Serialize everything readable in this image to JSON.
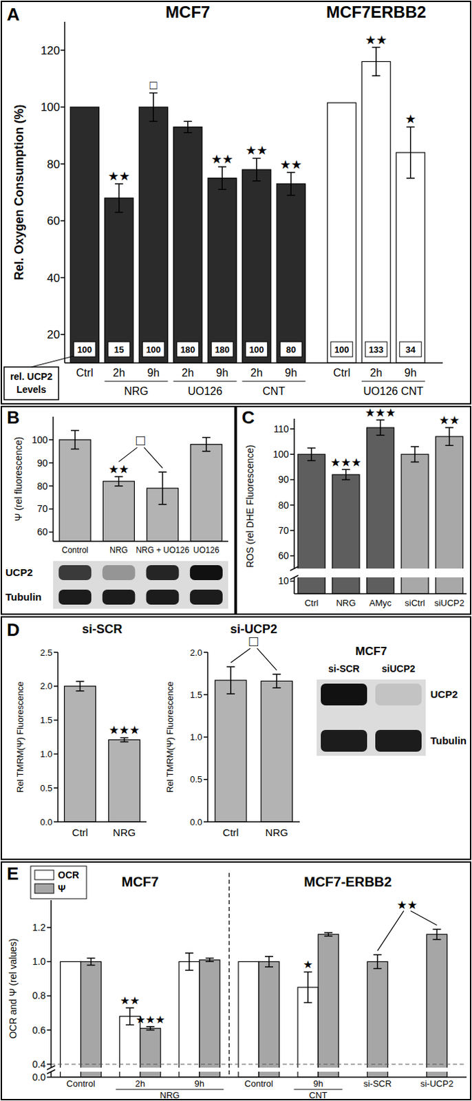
{
  "chart_data": [
    {
      "panel_label": "A",
      "type": "bar",
      "y_label": "Rel. Oxygen Consumption (%)",
      "ylim": [
        10,
        130
      ],
      "yticks": [
        20,
        40,
        60,
        80,
        100,
        120
      ],
      "ucp2_label": [
        "rel. UCP2",
        "Levels"
      ],
      "series": [
        {
          "name": "MCF7",
          "color": "#2b2b2b",
          "categories": [
            "Ctrl",
            "2h",
            "9h",
            "2h",
            "9h",
            "2h",
            "9h"
          ],
          "group_labels": [
            null,
            "NRG",
            "NRG",
            "UO126",
            "UO126",
            "CNT",
            "CNT"
          ],
          "values": [
            100,
            68,
            100,
            93,
            75,
            78,
            73
          ],
          "errors": [
            null,
            5,
            5,
            2,
            4,
            4,
            4
          ],
          "significance": [
            null,
            "★★",
            "□",
            null,
            "★★",
            "★★",
            "★★"
          ],
          "rel_ucp2": [
            100,
            15,
            100,
            180,
            180,
            100,
            80
          ]
        },
        {
          "name": "MCF7ERBB2",
          "color": "#ffffff",
          "categories": [
            "Ctrl",
            "2h",
            "9h"
          ],
          "group_labels": [
            null,
            "UO126 CNT",
            "UO126 CNT"
          ],
          "values": [
            101.5,
            116,
            84
          ],
          "errors": [
            null,
            5,
            9
          ],
          "significance": [
            null,
            "★★",
            "★"
          ],
          "rel_ucp2": [
            100,
            133,
            34
          ]
        }
      ]
    },
    {
      "panel_label": "B",
      "type": "bar",
      "y_label": "Ψ (rel fluorescence)",
      "ylim": [
        56,
        110
      ],
      "yticks": [
        60,
        70,
        80,
        90,
        100
      ],
      "color": "#b3b3b3",
      "categories": [
        "Control",
        "NRG",
        "NRG + UO126",
        "UO126"
      ],
      "values": [
        100,
        82,
        79,
        98
      ],
      "errors": [
        4,
        2,
        7,
        3
      ],
      "significance": [
        null,
        "★★",
        null,
        null
      ],
      "bracket": {
        "label": "□",
        "categories": [
          "NRG",
          "NRG + UO126"
        ]
      },
      "blot": {
        "rows": [
          {
            "label": "UCP2",
            "intensity": [
              0.8,
              0.35,
              0.9,
              1.0
            ]
          },
          {
            "label": "Tubulin",
            "intensity": [
              0.95,
              0.95,
              0.95,
              0.95
            ]
          }
        ]
      }
    },
    {
      "panel_label": "C",
      "type": "bar",
      "y_label": "ROS (rel DHE Fluorescence)",
      "ylim": [
        55,
        114
      ],
      "yticks": [
        60,
        70,
        80,
        90,
        100,
        110
      ],
      "axis_break": {
        "ylim": [
          0,
          13
        ],
        "yticks": [
          10
        ]
      },
      "colors": [
        "#5e5e5e",
        "#5e5e5e",
        "#5e5e5e",
        "#a8a8a8",
        "#a8a8a8"
      ],
      "categories": [
        "Ctrl",
        "NRG",
        "AMyc",
        "siCtrl",
        "siUCP2"
      ],
      "values": [
        100,
        92,
        110.5,
        100,
        107
      ],
      "errors": [
        2.5,
        2,
        3,
        3,
        3.5
      ],
      "significance": [
        null,
        "★★★",
        "★★★",
        null,
        "★★"
      ]
    },
    {
      "panel_label": "D",
      "type": "bar",
      "title": "si-SCR",
      "y_label": "Rel TMRM(Ψ) Fluorescence",
      "ylim": [
        0,
        2.5
      ],
      "yticks": [
        {
          "value": 0,
          "label": "0.0"
        },
        0.5,
        {
          "value": 1,
          "label": "1.0"
        },
        1.5,
        {
          "value": 2,
          "label": "2.0"
        },
        2.5
      ],
      "color": "#b3b3b3",
      "categories": [
        "Ctrl",
        "NRG"
      ],
      "values": [
        2.0,
        1.21
      ],
      "errors": [
        0.07,
        0.03
      ],
      "significance": [
        null,
        "★★★"
      ]
    },
    {
      "type": "bar",
      "title": "si-UCP2",
      "y_label": "Rel TMRM(Ψ) Fluorescence",
      "ylim": [
        0,
        2.0
      ],
      "yticks": [
        {
          "value": 0,
          "label": "0.0"
        },
        0.5,
        {
          "value": 1,
          "label": "1.0"
        },
        1.5,
        {
          "value": 2,
          "label": "2.0"
        }
      ],
      "color": "#b3b3b3",
      "categories": [
        "Ctrl",
        "NRG"
      ],
      "values": [
        1.67,
        1.66
      ],
      "errors": [
        0.16,
        0.08
      ],
      "bracket": {
        "label": "□",
        "categories": [
          "Ctrl",
          "NRG"
        ]
      },
      "blot": {
        "title": "MCF7",
        "columns": [
          "si-SCR",
          "siUCP2"
        ],
        "rows": [
          {
            "label": "UCP2",
            "intensity": [
              1.0,
              0.12
            ]
          },
          {
            "label": "Tubulin",
            "intensity": [
              0.95,
              0.95
            ]
          }
        ]
      }
    },
    {
      "panel_label": "E",
      "type": "bar",
      "y_label": "OCR and Ψ (rel values)",
      "ylim": [
        0.38,
        1.36
      ],
      "yticks": [
        0.4,
        0.6,
        0.8,
        {
          "value": 1,
          "label": "1.0"
        },
        1.2
      ],
      "axis_break": {
        "ylim": [
          0,
          0.05
        ],
        "yticks": [
          {
            "value": 0,
            "label": "0.0"
          }
        ]
      },
      "reference_line": 0.4,
      "legend": "upper left",
      "categories": [
        "Control",
        "2h",
        "9h",
        "Control",
        "9h",
        "si-SCR",
        "si-UCP2"
      ],
      "group_labels": [
        null,
        "NRG",
        "NRG",
        null,
        "CNT",
        null,
        null
      ],
      "sections": [
        "MCF7",
        "MCF7",
        "MCF7",
        "MCF7-ERBB2",
        "MCF7-ERBB2",
        "MCF7-ERBB2",
        "MCF7-ERBB2"
      ],
      "series": [
        {
          "name": "OCR",
          "color": "#ffffff",
          "values": [
            1.0,
            0.68,
            1.0,
            1.0,
            0.85,
            null,
            null
          ],
          "errors": [
            null,
            0.05,
            0.05,
            null,
            0.09,
            null,
            null
          ],
          "significance": [
            null,
            "★★",
            null,
            null,
            "★",
            null,
            null
          ]
        },
        {
          "name": "Ψ",
          "color": "#a6a6a6",
          "values": [
            1.0,
            0.61,
            1.01,
            1.0,
            1.16,
            1.0,
            1.16
          ],
          "errors": [
            0.02,
            0.01,
            0.01,
            0.03,
            0.01,
            0.04,
            0.03
          ],
          "significance": [
            null,
            "★★★",
            null,
            null,
            null,
            null,
            null
          ]
        }
      ],
      "bracket": {
        "label": "★★",
        "categories": [
          "si-SCR",
          "si-UCP2"
        ]
      }
    }
  ]
}
